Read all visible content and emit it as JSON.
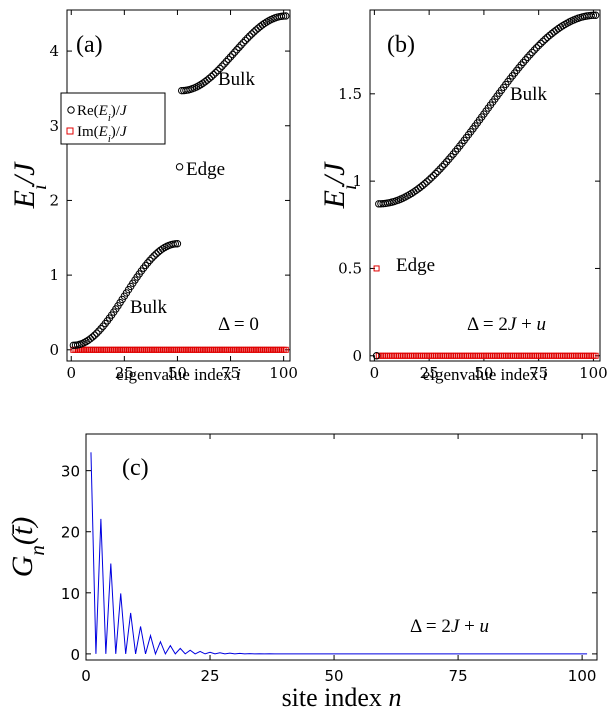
{
  "chart_data": [
    {
      "panel": "(a)",
      "type": "scatter",
      "xlabel": "eigenvalue index i",
      "ylabel": "E_i/J",
      "xlim": [
        -2,
        103
      ],
      "ylim": [
        -0.15,
        4.55
      ],
      "xticks": [
        "0",
        "25",
        "50",
        "75",
        "100"
      ],
      "yticks": [
        "0",
        "1",
        "2",
        "3",
        "4"
      ],
      "legend": [
        "Re(E_i)/J",
        "Im(E_i)/J"
      ],
      "annotations": [
        "Bulk",
        "Bulk",
        "Edge",
        "Δ = 0"
      ],
      "series": [
        {
          "name": "Re(E_i)/J",
          "marker": "circle",
          "color": "#000000",
          "segments": [
            {
              "i_from": 1,
              "i_to": 50,
              "from": 0.06,
              "to": 1.42
            },
            {
              "i_from": 52,
              "i_to": 101,
              "from": 3.47,
              "to": 4.47
            }
          ],
          "points": [
            {
              "i": 51,
              "value": 2.45
            }
          ]
        },
        {
          "name": "Im(E_i)/J",
          "marker": "square",
          "color": "#e00000",
          "i_from": 1,
          "i_to": 101,
          "value": 0
        }
      ]
    },
    {
      "panel": "(b)",
      "type": "scatter",
      "xlabel": "eigenvalue index i",
      "ylabel": "E_i/J",
      "xlim": [
        -2,
        103
      ],
      "ylim": [
        -0.03,
        1.98
      ],
      "xticks": [
        "0",
        "25",
        "50",
        "75",
        "100"
      ],
      "yticks": [
        "0",
        "0.5",
        "1",
        "1.5"
      ],
      "annotations": [
        "Bulk",
        "Edge",
        "Δ = 2J + u"
      ],
      "series": [
        {
          "name": "Re(E_i)/J",
          "marker": "circle",
          "color": "#000000",
          "points": [
            {
              "i": 1,
              "value": 0
            }
          ],
          "segments": [
            {
              "i_from": 2,
              "i_to": 101,
              "from": 0.87,
              "to": 1.95
            }
          ]
        },
        {
          "name": "Im(E_i)/J",
          "marker": "square",
          "color": "#e00000",
          "points": [
            {
              "i": 1,
              "value": 0.5
            }
          ],
          "segments": [
            {
              "i_from": 2,
              "i_to": 101,
              "from": 0,
              "to": 0
            }
          ]
        }
      ]
    },
    {
      "panel": "(c)",
      "type": "line",
      "xlabel": "site index n",
      "ylabel": "G_n(t̄)",
      "xlim": [
        0,
        103
      ],
      "ylim": [
        -1,
        36
      ],
      "xticks": [
        "0",
        "25",
        "50",
        "75",
        "100"
      ],
      "yticks": [
        "0",
        "10",
        "20",
        "30"
      ],
      "annotations": [
        "Δ = 2J + u"
      ],
      "color": "#0000e0",
      "peaks": [
        {
          "n": 1,
          "value": 33.0
        },
        {
          "n": 3,
          "value": 22.1
        },
        {
          "n": 5,
          "value": 14.8
        },
        {
          "n": 7,
          "value": 9.9
        },
        {
          "n": 9,
          "value": 6.7
        },
        {
          "n": 11,
          "value": 4.5
        },
        {
          "n": 13,
          "value": 3.0
        },
        {
          "n": 15,
          "value": 2.0
        },
        {
          "n": 17,
          "value": 1.35
        },
        {
          "n": 19,
          "value": 0.9
        },
        {
          "n": 21,
          "value": 0.6
        },
        {
          "n": 23,
          "value": 0.4
        },
        {
          "n": 25,
          "value": 0.27
        },
        {
          "n": 27,
          "value": 0.18
        },
        {
          "n": 29,
          "value": 0.12
        },
        {
          "n": 31,
          "value": 0.08
        },
        {
          "n": 33,
          "value": 0.05
        },
        {
          "n": 35,
          "value": 0.03
        },
        {
          "n": 37,
          "value": 0.02
        },
        {
          "n": 39,
          "value": 0.01
        }
      ],
      "n_max": 101
    }
  ]
}
